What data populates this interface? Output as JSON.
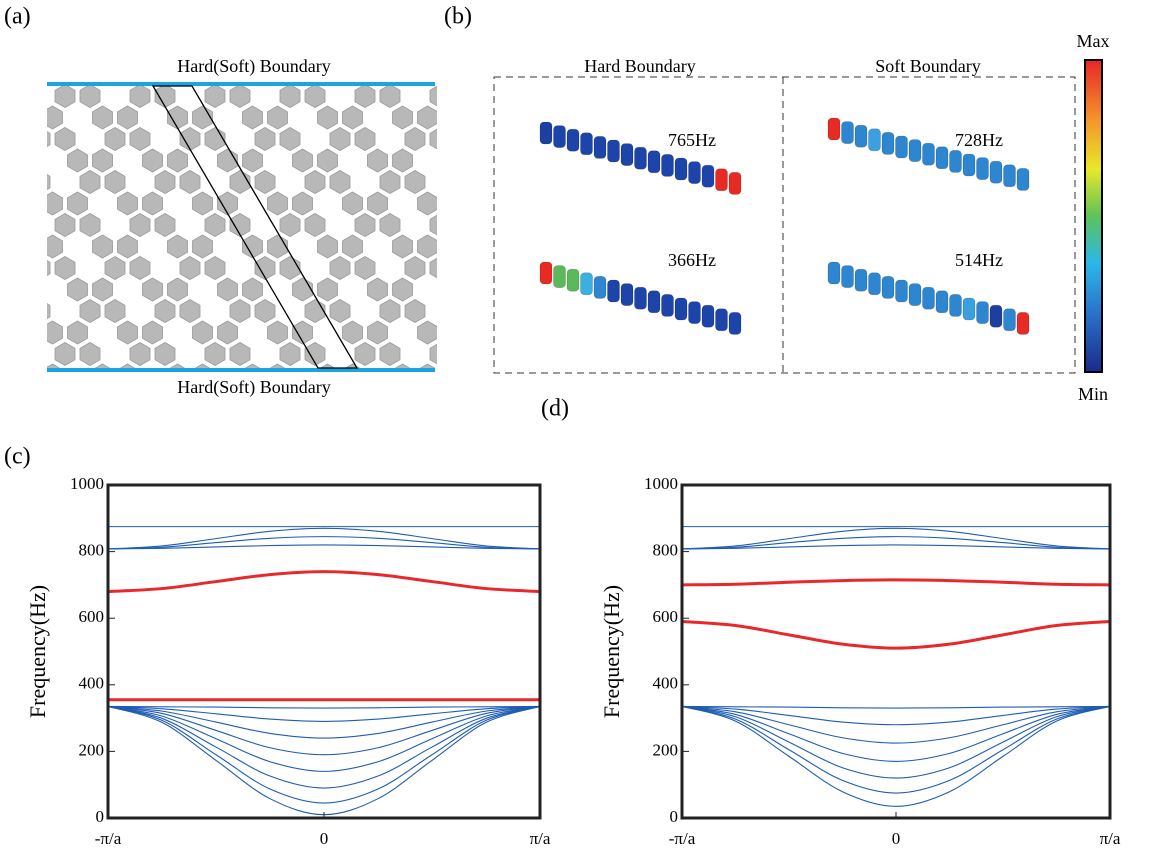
{
  "panel_a": {
    "label": "(a)",
    "top_boundary": "Hard(Soft) Boundary",
    "bottom_boundary": "Hard(Soft) Boundary"
  },
  "panel_b": {
    "label": "(b)",
    "hard": "Hard Boundary",
    "soft": "Soft Boundary",
    "modes": [
      "765Hz",
      "728Hz",
      "366Hz",
      "514Hz"
    ],
    "colorbar_max": "Max",
    "colorbar_min": "Min"
  },
  "chart_data": [
    {
      "type": "line",
      "label": "(c)",
      "y_label": "Frequency(Hz)",
      "x": [
        -1,
        -0.75,
        -0.5,
        -0.25,
        0,
        0.25,
        0.5,
        0.75,
        1
      ],
      "xlim": [
        -1,
        1
      ],
      "xticks": [
        {
          "value": -1,
          "label": "-π/a"
        },
        0,
        {
          "value": 1,
          "label": "π/a"
        }
      ],
      "ylim": [
        0,
        1000
      ],
      "yticks": [
        0,
        200,
        400,
        600,
        800,
        1000
      ],
      "series": [
        {
          "color": "#1f5cb4",
          "values": [
            335,
            334,
            333,
            331,
            330,
            331,
            333,
            334,
            335
          ]
        },
        {
          "color": "#1f5cb4",
          "values": [
            335,
            328,
            313,
            297,
            290,
            297,
            313,
            328,
            335
          ]
        },
        {
          "color": "#1f5cb4",
          "values": [
            335,
            321,
            288,
            254,
            240,
            254,
            288,
            321,
            335
          ]
        },
        {
          "color": "#1f5cb4",
          "values": [
            335,
            314,
            263,
            211,
            190,
            211,
            263,
            314,
            335
          ]
        },
        {
          "color": "#1f5cb4",
          "values": [
            335,
            306,
            238,
            169,
            140,
            169,
            238,
            306,
            335
          ]
        },
        {
          "color": "#1f5cb4",
          "values": [
            335,
            299,
            213,
            126,
            90,
            126,
            213,
            299,
            335
          ]
        },
        {
          "color": "#1f5cb4",
          "values": [
            335,
            293,
            190,
            87,
            45,
            87,
            190,
            293,
            335
          ]
        },
        {
          "color": "#1f5cb4",
          "values": [
            335,
            287,
            173,
            58,
            10,
            58,
            173,
            287,
            335
          ]
        },
        {
          "color": "#1f5cb4",
          "values": [
            808,
            810,
            814,
            818,
            820,
            818,
            814,
            810,
            808
          ]
        },
        {
          "color": "#1f5cb4",
          "values": [
            808,
            813,
            827,
            840,
            845,
            840,
            827,
            813,
            808
          ]
        },
        {
          "color": "#1f5cb4",
          "values": [
            808,
            817,
            839,
            861,
            870,
            861,
            839,
            817,
            808
          ]
        },
        {
          "color": "#1f5cb4",
          "values": [
            875,
            875,
            875,
            875,
            875,
            875,
            875,
            875,
            875
          ]
        },
        {
          "color": "#e8282b",
          "values": [
            355,
            355,
            355,
            355,
            355,
            355,
            355,
            355,
            355
          ]
        },
        {
          "color": "#e8282b",
          "values": [
            680,
            689,
            710,
            731,
            740,
            731,
            710,
            689,
            680
          ]
        }
      ]
    },
    {
      "type": "line",
      "label": "(d)",
      "y_label": "Frequency(Hz)",
      "x": [
        -1,
        -0.75,
        -0.5,
        -0.25,
        0,
        0.25,
        0.5,
        0.75,
        1
      ],
      "xlim": [
        -1,
        1
      ],
      "xticks": [
        {
          "value": -1,
          "label": "-π/a"
        },
        0,
        {
          "value": 1,
          "label": "π/a"
        }
      ],
      "ylim": [
        0,
        1000
      ],
      "yticks": [
        0,
        200,
        400,
        600,
        800,
        1000
      ],
      "series": [
        {
          "color": "#1f5cb4",
          "values": [
            335,
            334,
            333,
            331,
            330,
            331,
            333,
            334,
            335
          ]
        },
        {
          "color": "#1f5cb4",
          "values": [
            335,
            327,
            308,
            288,
            280,
            288,
            308,
            327,
            335
          ]
        },
        {
          "color": "#1f5cb4",
          "values": [
            335,
            319,
            280,
            241,
            225,
            241,
            280,
            319,
            335
          ]
        },
        {
          "color": "#1f5cb4",
          "values": [
            335,
            311,
            253,
            194,
            170,
            194,
            253,
            311,
            335
          ]
        },
        {
          "color": "#1f5cb4",
          "values": [
            335,
            304,
            228,
            151,
            120,
            151,
            228,
            304,
            335
          ]
        },
        {
          "color": "#1f5cb4",
          "values": [
            335,
            297,
            205,
            113,
            75,
            113,
            205,
            297,
            335
          ]
        },
        {
          "color": "#1f5cb4",
          "values": [
            335,
            291,
            185,
            79,
            35,
            79,
            185,
            291,
            335
          ]
        },
        {
          "color": "#1f5cb4",
          "values": [
            808,
            810,
            814,
            818,
            820,
            818,
            814,
            810,
            808
          ]
        },
        {
          "color": "#1f5cb4",
          "values": [
            808,
            813,
            827,
            840,
            845,
            840,
            827,
            813,
            808
          ]
        },
        {
          "color": "#1f5cb4",
          "values": [
            808,
            817,
            839,
            861,
            870,
            861,
            839,
            817,
            808
          ]
        },
        {
          "color": "#1f5cb4",
          "values": [
            875,
            875,
            875,
            875,
            875,
            875,
            875,
            875,
            875
          ]
        },
        {
          "color": "#e8282b",
          "values": [
            590,
            578,
            550,
            522,
            510,
            522,
            550,
            578,
            590
          ]
        },
        {
          "color": "#e8282b",
          "values": [
            700,
            702,
            708,
            713,
            715,
            713,
            708,
            702,
            700
          ]
        }
      ]
    }
  ]
}
